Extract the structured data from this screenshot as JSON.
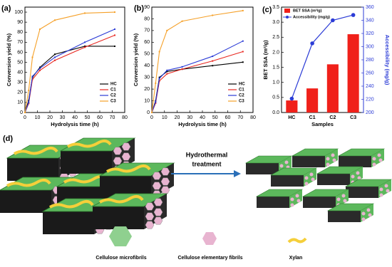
{
  "chart_data": [
    {
      "type": "line",
      "panel_label": "(a)",
      "x_label": "Hydrolysis time (h)",
      "y_label": "Conversion yield (%)",
      "x": [
        0,
        3,
        6,
        12,
        24,
        48,
        72
      ],
      "xlim": [
        0,
        80
      ],
      "xticks": [
        0,
        10,
        20,
        30,
        40,
        50,
        60,
        70,
        80
      ],
      "ylim": [
        0,
        105
      ],
      "yticks": [
        0,
        10,
        20,
        30,
        40,
        50,
        60,
        70,
        80,
        90,
        100
      ],
      "legend": "lower-right",
      "series": [
        {
          "name": "HC",
          "color": "#000000",
          "values": [
            0,
            12,
            35,
            45,
            58,
            66,
            66
          ]
        },
        {
          "name": "C1",
          "color": "#e8261f",
          "values": [
            0,
            9,
            33,
            42,
            52,
            65,
            77
          ]
        },
        {
          "name": "C2",
          "color": "#2b3bd6",
          "values": [
            0,
            10,
            36,
            44,
            55,
            70,
            83
          ]
        },
        {
          "name": "C3",
          "color": "#f5a028",
          "values": [
            0,
            22,
            55,
            83,
            92,
            99,
            100
          ]
        }
      ]
    },
    {
      "type": "line",
      "panel_label": "(b)",
      "x_label": "Hydrolysis time (h)",
      "y_label": "Conversion yield (%)",
      "x": [
        0,
        3,
        6,
        12,
        24,
        48,
        72
      ],
      "xlim": [
        0,
        80
      ],
      "xticks": [
        0,
        10,
        20,
        30,
        40,
        50,
        60,
        70,
        80
      ],
      "ylim": [
        0,
        90
      ],
      "yticks": [
        0,
        10,
        20,
        30,
        40,
        50,
        60,
        70,
        80,
        90
      ],
      "legend": "lower-right",
      "series": [
        {
          "name": "HC",
          "color": "#000000",
          "values": [
            0,
            10,
            30,
            35,
            37,
            40,
            43
          ]
        },
        {
          "name": "C1",
          "color": "#e8261f",
          "values": [
            0,
            8,
            27,
            33,
            37,
            44,
            52
          ]
        },
        {
          "name": "C2",
          "color": "#2b3bd6",
          "values": [
            0,
            9,
            29,
            36,
            39,
            48,
            61
          ]
        },
        {
          "name": "C3",
          "color": "#f5a028",
          "values": [
            0,
            25,
            52,
            70,
            78,
            83,
            87
          ]
        }
      ]
    },
    {
      "type": "combo",
      "panel_label": "(c)",
      "x_label": "Samples",
      "y_label": "BET SSA (m²/g)",
      "y2_label": "Accessibility (mg/g)",
      "categories": [
        "HC",
        "C1",
        "C2",
        "C3"
      ],
      "ylim": [
        0,
        3.5
      ],
      "yticks": [
        {
          "value": 0,
          "label": "0.0"
        },
        0.5,
        {
          "value": 1,
          "label": "1.0"
        },
        1.5,
        {
          "value": 2,
          "label": "2.0"
        },
        2.5,
        {
          "value": 3,
          "label": "3.0"
        },
        3.5
      ],
      "y2lim": [
        200,
        360
      ],
      "y2ticks": [
        200,
        220,
        240,
        260,
        280,
        300,
        320,
        340,
        360
      ],
      "legend": "upper-left",
      "series": [
        {
          "name": "BET SSA (m²/g)",
          "type": "bar",
          "color": "#f0201a",
          "values": [
            0.4,
            0.8,
            1.6,
            2.6
          ]
        },
        {
          "name": "Accessibility (mg/g)",
          "type": "line",
          "axis": "y2",
          "color": "#2b3bd6",
          "values": [
            221,
            305,
            340,
            348
          ]
        }
      ]
    }
  ],
  "diagram": {
    "panel_label": "(d)",
    "arrow_label": [
      "Hydrothermal",
      "treatment"
    ],
    "legend": [
      "Cellulose microfibrils",
      "Cellulose elementary fibrils",
      "Xylan"
    ]
  }
}
